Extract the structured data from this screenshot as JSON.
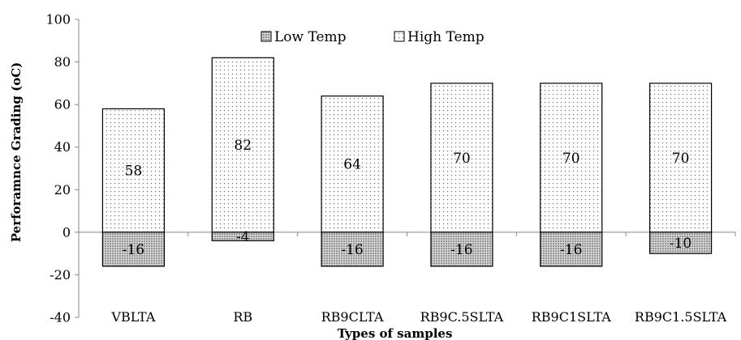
{
  "chart_data": {
    "type": "bar",
    "stacked": true,
    "categories": [
      "VBLTA",
      "RB",
      "RB9CLTA",
      "RB9C.5SLTA",
      "RB9C1SLTA",
      "RB9C1.5SLTA"
    ],
    "series": [
      {
        "name": "Low Temp",
        "values": [
          -16,
          -4,
          -16,
          -16,
          -16,
          -10
        ],
        "labels": [
          "-16",
          "-4",
          "-16",
          "-16",
          "-16",
          "-10"
        ],
        "pattern": "dense-dots",
        "color": "#555555"
      },
      {
        "name": "High Temp",
        "values": [
          58,
          82,
          64,
          70,
          70,
          70
        ],
        "labels": [
          "58",
          "82",
          "64",
          "70",
          "70",
          "70"
        ],
        "pattern": "sparse-dots",
        "color": "#888888"
      }
    ],
    "title": "",
    "xlabel": "Types of samples",
    "ylabel": "Perforamnce Grading (oC)",
    "ylim": [
      -40,
      100
    ],
    "yticks": [
      -40,
      -20,
      0,
      20,
      40,
      60,
      80,
      100
    ],
    "ytick_labels": [
      "-40",
      "-20",
      "0",
      "20",
      "40",
      "60",
      "80",
      "100"
    ],
    "grid": false,
    "legend_position": "top"
  }
}
